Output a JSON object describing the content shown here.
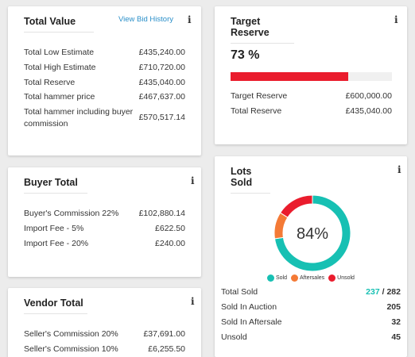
{
  "total_value": {
    "title": "Total Value",
    "link": "View Bid History",
    "info": "i",
    "rows": [
      {
        "label": "Total Low Estimate",
        "value": "£435,240.00"
      },
      {
        "label": "Total High Estimate",
        "value": "£710,720.00"
      },
      {
        "label": "Total Reserve",
        "value": "£435,040.00"
      },
      {
        "label": "Total hammer price",
        "value": "£467,637.00"
      },
      {
        "label": "Total hammer including buyer",
        "label2": "commission",
        "value": "£570,517.14"
      }
    ]
  },
  "target_reserve": {
    "title": "Target Reserve",
    "info": "i",
    "percent_text": "73 %",
    "progress": 0.73,
    "rows": [
      {
        "label": "Target Reserve",
        "value": "£600,000.00"
      },
      {
        "label": "Total Reserve",
        "value": "£435,040.00"
      }
    ]
  },
  "buyer_total": {
    "title": "Buyer Total",
    "info": "i",
    "rows": [
      {
        "label": "Buyer's Commission 22%",
        "value": "£102,880.14"
      },
      {
        "label": "Import Fee - 5%",
        "value": "£622.50"
      },
      {
        "label": "Import Fee - 20%",
        "value": "£240.00"
      }
    ]
  },
  "lots_sold": {
    "title": "Lots Sold",
    "info": "i",
    "center_text": "84%",
    "legend": [
      {
        "label": "Sold",
        "color": "#17c0b3"
      },
      {
        "label": "Aftersales",
        "color": "#f47a36"
      },
      {
        "label": "Unsold",
        "color": "#ea1c2d"
      }
    ],
    "donut": [
      {
        "name": "Sold",
        "value": 205,
        "color": "#17c0b3"
      },
      {
        "name": "Aftersales",
        "value": 32,
        "color": "#f47a36"
      },
      {
        "name": "Unsold",
        "value": 45,
        "color": "#ea1c2d"
      }
    ],
    "total_sold_label": "Total Sold",
    "total_sold_value": "237",
    "total_sold_sep": " / ",
    "total_sold_total": "282",
    "rows": [
      {
        "label": "Sold In Auction",
        "value": "205"
      },
      {
        "label": "Sold In Aftersale",
        "value": "32"
      },
      {
        "label": "Unsold",
        "value": "45"
      }
    ]
  },
  "vendor_total": {
    "title": "Vendor Total",
    "info": "i",
    "rows": [
      {
        "label": "Seller's Commission 20%",
        "value": "£37,691.00"
      },
      {
        "label": "Seller's Commission 10%",
        "value": "£6,255.50"
      }
    ]
  },
  "colors": {
    "progress_fill": "#ea1c2d",
    "progress_track": "#f0f0f0",
    "sold_teal": "#17c0b3",
    "link_blue": "#2a8fc9"
  }
}
